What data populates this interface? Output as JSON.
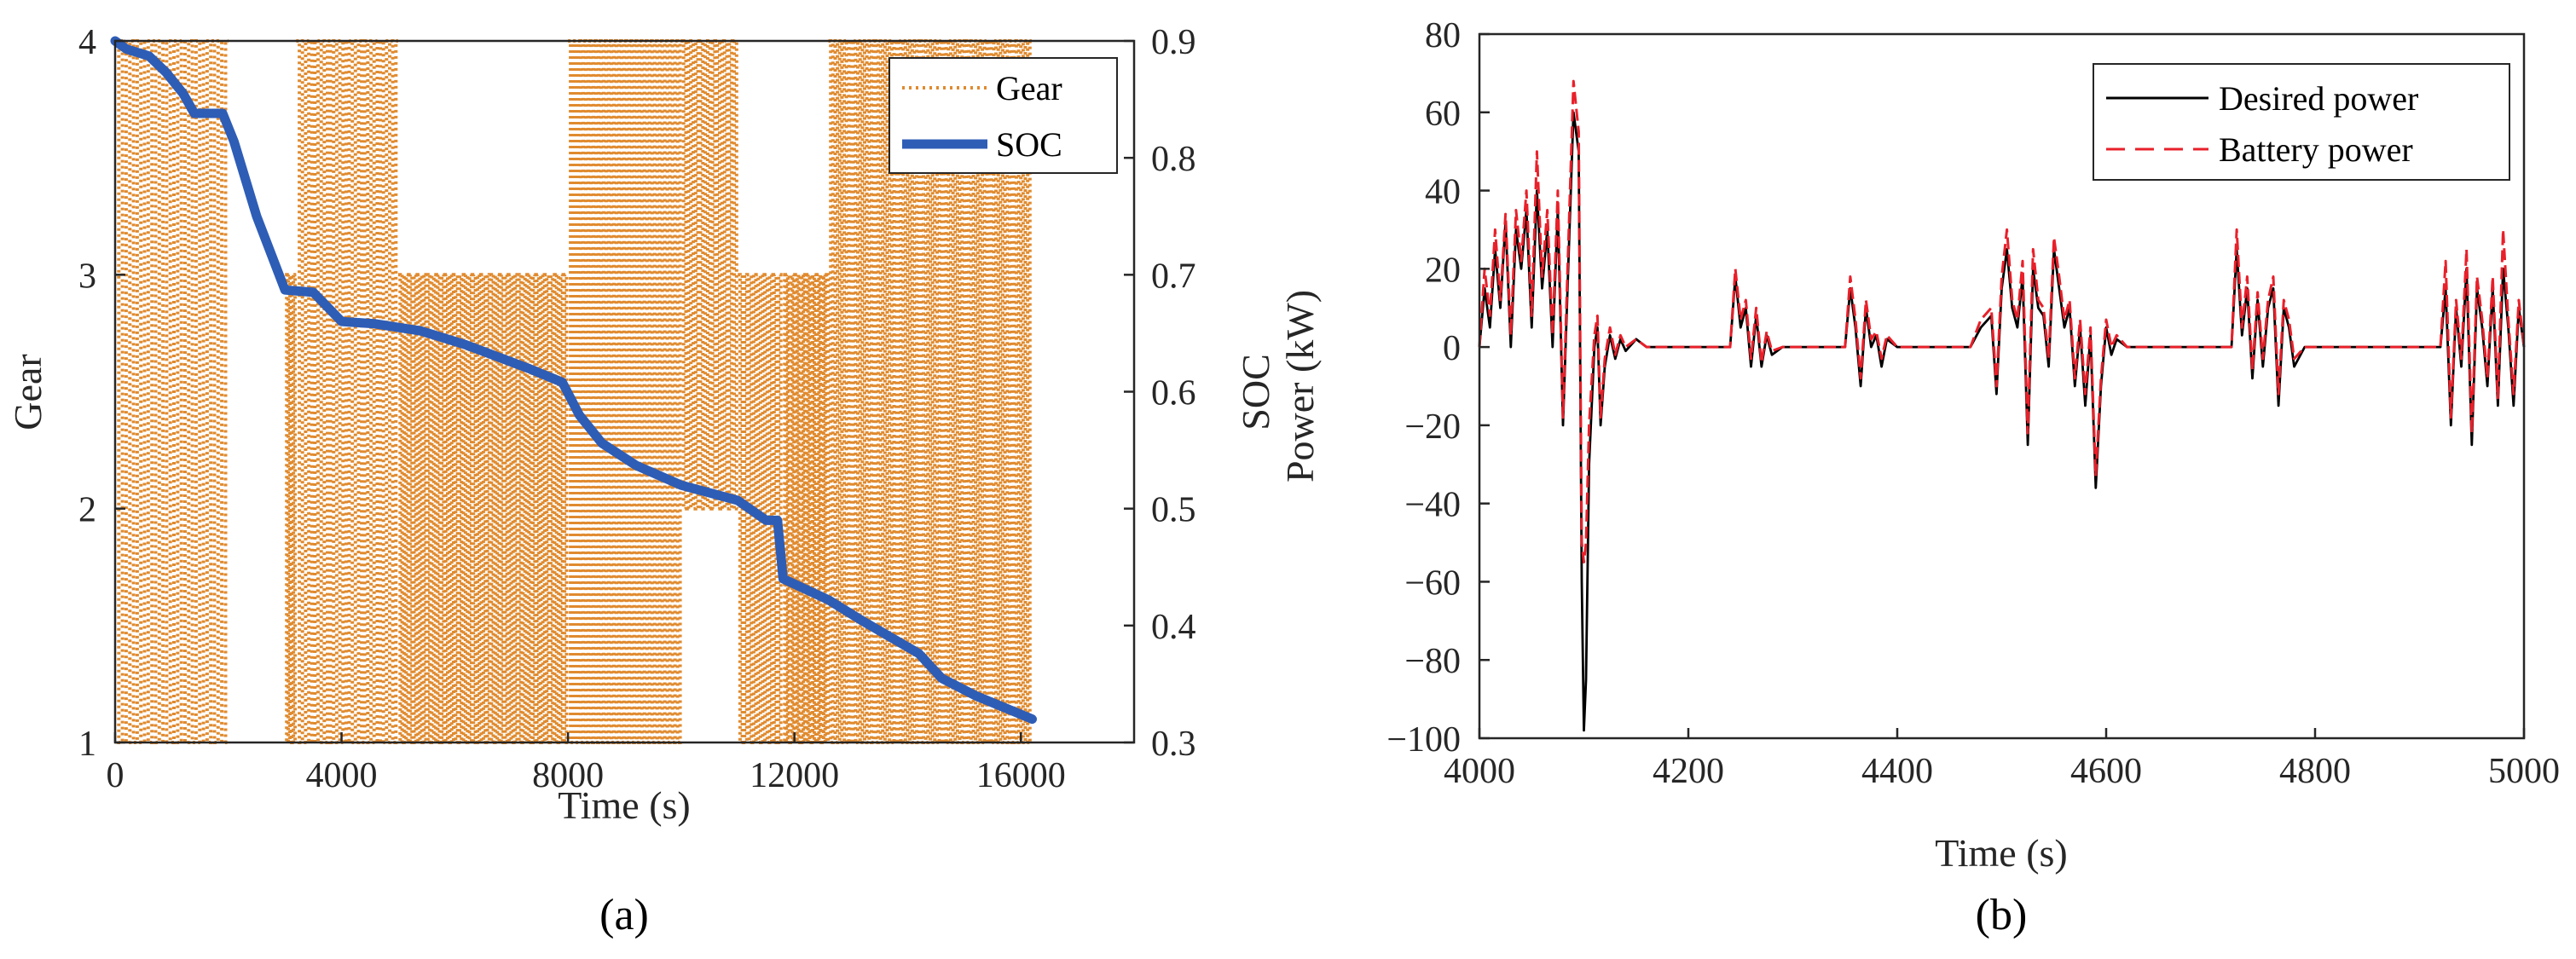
{
  "chart_data": [
    {
      "id": "a",
      "type": "line",
      "caption": "(a)",
      "xlabel": "Time (s)",
      "ylabel_left": "Gear",
      "ylabel_right": "SOC",
      "xlim": [
        0,
        18000
      ],
      "xticks": [
        0,
        4000,
        8000,
        12000,
        16000
      ],
      "ylim_left": [
        1,
        4
      ],
      "yticks_left": [
        1,
        2,
        3,
        4
      ],
      "ylim_right": [
        0.3,
        0.9
      ],
      "yticks_right": [
        0.3,
        0.4,
        0.5,
        0.6,
        0.7,
        0.8,
        0.9
      ],
      "legend": {
        "location": "top-right",
        "entries": [
          "Gear",
          "SOC"
        ]
      },
      "series": [
        {
          "name": "Gear",
          "axis": "left",
          "color": "#E08A2E",
          "style": "dotted",
          "segments": [
            {
              "x": [
                0,
                2000
              ],
              "levels": [
                1,
                4
              ],
              "period": 130
            },
            {
              "x": [
                2000,
                3000
              ],
              "levels": [],
              "period": 0
            },
            {
              "x": [
                3000,
                3200
              ],
              "levels": [
                1,
                3
              ],
              "period": 60
            },
            {
              "x": [
                3200,
                5000
              ],
              "levels": [
                1,
                4
              ],
              "period": 110
            },
            {
              "x": [
                5000,
                8000
              ],
              "levels": [
                1,
                3
              ],
              "period": 70
            },
            {
              "x": [
                8000,
                10000
              ],
              "levels": [
                1,
                4
              ],
              "period": 90
            },
            {
              "x": [
                10000,
                11000
              ],
              "levels": [
                2,
                4
              ],
              "period": 85
            },
            {
              "x": [
                11000,
                11800
              ],
              "levels": [
                1,
                3
              ],
              "period": 80
            },
            {
              "x": [
                11800,
                12600
              ],
              "levels": [
                1,
                3
              ],
              "period": 55
            },
            {
              "x": [
                12600,
                16200
              ],
              "levels": [
                1,
                4
              ],
              "period": 80
            }
          ]
        },
        {
          "name": "SOC",
          "axis": "right",
          "color": "#2E5DB6",
          "style": "solid",
          "x": [
            0,
            200,
            600,
            900,
            1200,
            1400,
            1900,
            2100,
            2500,
            3000,
            3500,
            4000,
            4600,
            5400,
            6200,
            7300,
            7900,
            8200,
            8600,
            9200,
            10000,
            11000,
            11500,
            11700,
            11800,
            12600,
            13200,
            13700,
            14200,
            14600,
            15200,
            16200
          ],
          "y": [
            0.9,
            0.893,
            0.887,
            0.873,
            0.855,
            0.838,
            0.838,
            0.814,
            0.75,
            0.687,
            0.685,
            0.66,
            0.658,
            0.652,
            0.64,
            0.62,
            0.608,
            0.58,
            0.556,
            0.537,
            0.52,
            0.507,
            0.49,
            0.49,
            0.44,
            0.422,
            0.404,
            0.39,
            0.376,
            0.355,
            0.34,
            0.32
          ]
        }
      ]
    },
    {
      "id": "b",
      "type": "line",
      "caption": "(b)",
      "xlabel": "Time (s)",
      "ylabel": "Power (kW)",
      "xlim": [
        4000,
        5000
      ],
      "xticks": [
        4000,
        4200,
        4400,
        4600,
        4800,
        5000
      ],
      "ylim": [
        -100,
        80
      ],
      "yticks": [
        -100,
        -80,
        -60,
        -40,
        -20,
        0,
        20,
        40,
        60,
        80
      ],
      "legend": {
        "location": "top-right",
        "entries": [
          "Desired power",
          "Battery power"
        ]
      },
      "series": [
        {
          "name": "Desired power",
          "color": "#000000",
          "style": "solid",
          "x": [
            4000,
            4005,
            4010,
            4015,
            4020,
            4025,
            4030,
            4035,
            4040,
            4045,
            4050,
            4055,
            4060,
            4065,
            4070,
            4075,
            4080,
            4085,
            4090,
            4095,
            4098,
            4100,
            4102,
            4105,
            4110,
            4113,
            4116,
            4120,
            4125,
            4130,
            4135,
            4140,
            4150,
            4160,
            4170,
            4240,
            4245,
            4250,
            4255,
            4260,
            4265,
            4270,
            4275,
            4280,
            4290,
            4350,
            4355,
            4360,
            4365,
            4370,
            4375,
            4380,
            4385,
            4390,
            4400,
            4470,
            4480,
            4490,
            4495,
            4500,
            4505,
            4510,
            4515,
            4520,
            4525,
            4530,
            4535,
            4540,
            4545,
            4550,
            4555,
            4560,
            4565,
            4570,
            4575,
            4580,
            4585,
            4590,
            4595,
            4600,
            4605,
            4610,
            4620,
            4720,
            4725,
            4730,
            4735,
            4740,
            4745,
            4750,
            4755,
            4760,
            4765,
            4770,
            4775,
            4780,
            4790,
            4920,
            4925,
            4930,
            4935,
            4940,
            4945,
            4950,
            4955,
            4960,
            4965,
            4970,
            4975,
            4980,
            4985,
            4990,
            4995,
            5000
          ],
          "y": [
            0,
            15,
            5,
            25,
            10,
            32,
            0,
            30,
            20,
            35,
            5,
            40,
            15,
            30,
            0,
            35,
            -20,
            20,
            60,
            50,
            -60,
            -98,
            -85,
            -30,
            0,
            5,
            -20,
            -5,
            3,
            -3,
            2,
            -1,
            2,
            0,
            0,
            0,
            18,
            5,
            10,
            -5,
            8,
            -5,
            3,
            -2,
            0,
            0,
            15,
            5,
            -10,
            10,
            0,
            3,
            -5,
            2,
            0,
            0,
            5,
            8,
            -12,
            15,
            25,
            10,
            5,
            18,
            -25,
            20,
            10,
            8,
            -5,
            25,
            15,
            5,
            10,
            -10,
            5,
            -15,
            3,
            -36,
            -10,
            5,
            -2,
            2,
            0,
            0,
            25,
            3,
            15,
            -8,
            12,
            -5,
            10,
            15,
            -15,
            10,
            5,
            -5,
            0,
            0,
            15,
            -20,
            10,
            -5,
            20,
            -25,
            15,
            5,
            -10,
            15,
            -15,
            20,
            5,
            -15,
            10,
            0
          ]
        },
        {
          "name": "Battery power",
          "color": "#E8202A",
          "style": "dashed",
          "x": [
            4000,
            4005,
            4010,
            4015,
            4020,
            4025,
            4030,
            4035,
            4040,
            4045,
            4050,
            4055,
            4060,
            4065,
            4070,
            4075,
            4080,
            4085,
            4090,
            4095,
            4098,
            4100,
            4102,
            4105,
            4110,
            4113,
            4116,
            4120,
            4125,
            4130,
            4135,
            4140,
            4150,
            4160,
            4170,
            4240,
            4245,
            4250,
            4255,
            4260,
            4265,
            4270,
            4275,
            4280,
            4290,
            4350,
            4355,
            4360,
            4365,
            4370,
            4375,
            4380,
            4385,
            4390,
            4400,
            4470,
            4480,
            4490,
            4495,
            4500,
            4505,
            4510,
            4515,
            4520,
            4525,
            4530,
            4535,
            4540,
            4545,
            4550,
            4555,
            4560,
            4565,
            4570,
            4575,
            4580,
            4585,
            4590,
            4595,
            4600,
            4605,
            4610,
            4620,
            4720,
            4725,
            4730,
            4735,
            4740,
            4745,
            4750,
            4755,
            4760,
            4765,
            4770,
            4775,
            4780,
            4790,
            4920,
            4925,
            4930,
            4935,
            4940,
            4945,
            4950,
            4955,
            4960,
            4965,
            4970,
            4975,
            4980,
            4985,
            4990,
            4995,
            5000
          ],
          "y": [
            0,
            20,
            8,
            30,
            12,
            34,
            3,
            35,
            22,
            40,
            8,
            50,
            18,
            35,
            3,
            40,
            -18,
            25,
            68,
            55,
            -50,
            -55,
            -50,
            -20,
            3,
            8,
            -18,
            -3,
            5,
            -2,
            3,
            0,
            2,
            0,
            0,
            0,
            20,
            7,
            12,
            -3,
            10,
            -4,
            4,
            -1,
            0,
            0,
            18,
            7,
            -8,
            12,
            2,
            4,
            -3,
            3,
            0,
            0,
            7,
            10,
            -10,
            18,
            30,
            12,
            7,
            22,
            -22,
            25,
            12,
            10,
            -3,
            28,
            18,
            7,
            12,
            -8,
            7,
            -12,
            5,
            -33,
            -8,
            7,
            0,
            3,
            0,
            0,
            30,
            5,
            18,
            -6,
            14,
            -3,
            12,
            18,
            -12,
            12,
            7,
            -3,
            0,
            0,
            22,
            -18,
            12,
            -3,
            25,
            -22,
            18,
            7,
            -8,
            18,
            -13,
            30,
            7,
            -12,
            12,
            0
          ]
        }
      ]
    }
  ]
}
